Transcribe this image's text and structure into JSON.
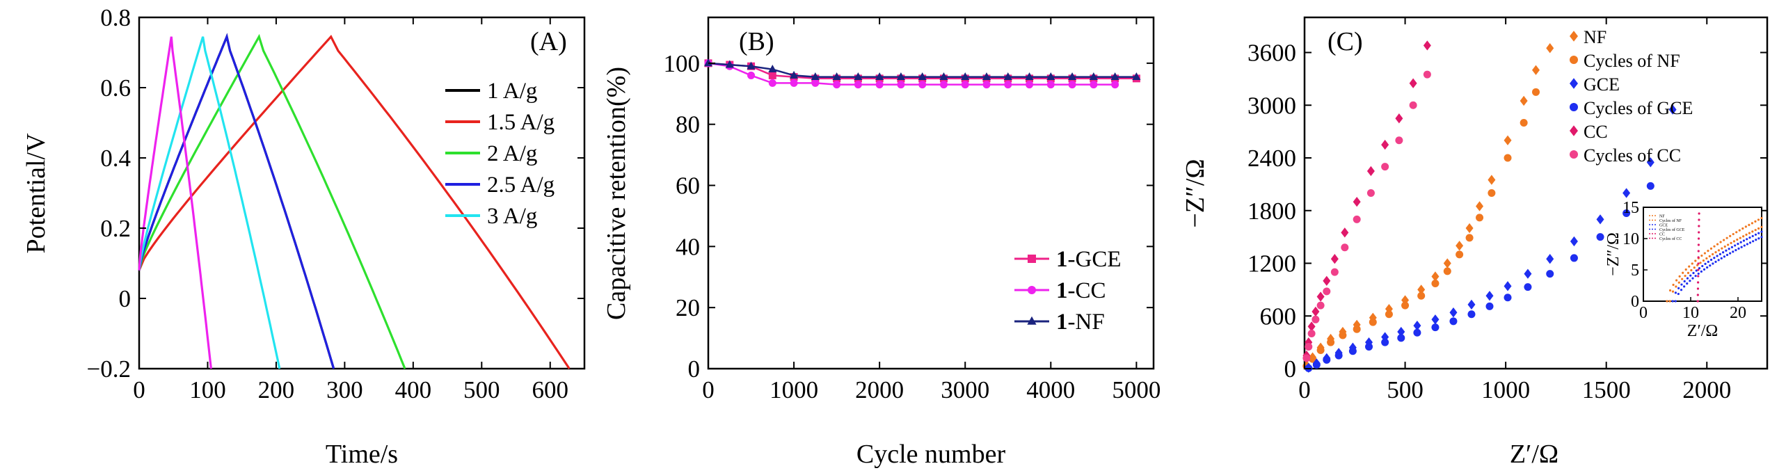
{
  "chart_data": [
    {
      "id": "A",
      "type": "line",
      "panel_label": "(A)",
      "xlabel": "Time/s",
      "ylabel": "Potential/V",
      "xlim": [
        0,
        650
      ],
      "ylim": [
        -0.2,
        0.8
      ],
      "xticks": [
        0,
        100,
        200,
        300,
        400,
        500,
        600
      ],
      "yticks": [
        -0.2,
        0,
        0.2,
        0.4,
        0.6,
        0.8
      ],
      "ytick_labels": [
        "−0.2",
        "0",
        "0.2",
        "0.4",
        "0.6",
        "0.8"
      ],
      "legend_position": "right",
      "series": [
        {
          "name": "1 A/g",
          "color": "#000000",
          "charge_end": 128,
          "discharge_end": 284
        },
        {
          "name": "1.5 A/g",
          "color": "#e8231e",
          "charge_end": 280,
          "discharge_end": 628
        },
        {
          "name": "2 A/g",
          "color": "#2ee02e",
          "charge_end": 175,
          "discharge_end": 388
        },
        {
          "name": "2.5 A/g",
          "color": "#2020e0",
          "charge_end": 128,
          "discharge_end": 284
        },
        {
          "name": "3 A/g",
          "color": "#22e4f0",
          "charge_end": 93,
          "discharge_end": 205
        },
        {
          "name": "",
          "color": "#ee22ee",
          "charge_end": 47,
          "discharge_end": 105
        }
      ],
      "v_start": 0.08,
      "v_max": 0.745,
      "v_min": -0.2
    },
    {
      "id": "B",
      "type": "line",
      "panel_label": "(B)",
      "xlabel": "Cycle number",
      "ylabel": "Capacitive retention(%)",
      "xlim": [
        0,
        5200
      ],
      "ylim": [
        0,
        115
      ],
      "xticks": [
        0,
        1000,
        2000,
        3000,
        4000,
        5000
      ],
      "yticks": [
        0,
        20,
        40,
        60,
        80,
        100
      ],
      "legend_position": "bottom-right",
      "series": [
        {
          "name_bold": "1",
          "name": "-GCE",
          "color": "#ee2288",
          "marker": "square",
          "x": [
            0,
            250,
            500,
            750,
            1000,
            1250,
            1500,
            1750,
            2000,
            2250,
            2500,
            2750,
            3000,
            3250,
            3500,
            3750,
            4000,
            4250,
            4500,
            4750,
            5000
          ],
          "values": [
            100,
            99.5,
            99,
            96,
            95.5,
            95,
            95,
            95,
            95,
            95,
            95,
            95,
            95,
            95,
            95,
            95,
            95,
            95,
            95,
            95,
            95
          ]
        },
        {
          "name_bold": "1",
          "name": "-CC",
          "color": "#ee22ee",
          "marker": "circle",
          "x": [
            0,
            250,
            500,
            750,
            1000,
            1250,
            1500,
            1750,
            2000,
            2250,
            2500,
            2750,
            3000,
            3250,
            3500,
            3750,
            4000,
            4250,
            4500,
            4750
          ],
          "values": [
            100,
            99,
            96,
            93.5,
            93.5,
            93.5,
            93,
            93,
            93,
            93,
            93,
            93,
            93,
            93,
            93,
            93,
            93,
            93,
            93,
            93
          ]
        },
        {
          "name_bold": "1",
          "name": "-NF",
          "color": "#1a237e",
          "marker": "triangle",
          "x": [
            0,
            250,
            500,
            750,
            1000,
            1250,
            1500,
            1750,
            2000,
            2250,
            2500,
            2750,
            3000,
            3250,
            3500,
            3750,
            4000,
            4250,
            4500,
            4750,
            5000
          ],
          "values": [
            100,
            99.5,
            99,
            98,
            96,
            95.5,
            95.5,
            95.5,
            95.5,
            95.5,
            95.5,
            95.5,
            95.5,
            95.5,
            95.5,
            95.5,
            95.5,
            95.5,
            95.5,
            95.5,
            95.5
          ]
        }
      ]
    },
    {
      "id": "C",
      "type": "scatter",
      "panel_label": "(C)",
      "xlabel": "Z′/Ω",
      "ylabel": "−Z″/Ω",
      "xlim": [
        0,
        2300
      ],
      "ylim": [
        0,
        4000
      ],
      "xticks": [
        0,
        500,
        1000,
        1500,
        2000
      ],
      "yticks": [
        0,
        600,
        1200,
        1800,
        2400,
        3000,
        3600
      ],
      "legend_position": "top-right",
      "series": [
        {
          "name": "NF",
          "color": "#f07820",
          "marker": "diamond",
          "x": [
            10,
            40,
            80,
            130,
            190,
            260,
            340,
            420,
            500,
            580,
            650,
            710,
            770,
            820,
            870,
            930,
            1010,
            1090,
            1150,
            1220
          ],
          "y": [
            40,
            130,
            240,
            340,
            420,
            500,
            580,
            680,
            780,
            900,
            1050,
            1200,
            1400,
            1600,
            1850,
            2150,
            2600,
            3050,
            3400,
            3650
          ]
        },
        {
          "name": "Cycles of NF",
          "color": "#f07820",
          "marker": "circle",
          "x": [
            10,
            40,
            80,
            130,
            190,
            260,
            340,
            420,
            500,
            580,
            650,
            710,
            770,
            820,
            870,
            930,
            1010,
            1090,
            1150
          ],
          "y": [
            30,
            110,
            210,
            300,
            380,
            450,
            530,
            620,
            720,
            830,
            970,
            1110,
            1300,
            1490,
            1720,
            2000,
            2400,
            2800,
            3150
          ]
        },
        {
          "name": "GCE",
          "color": "#1e2ef0",
          "marker": "diamond",
          "x": [
            20,
            60,
            110,
            170,
            240,
            320,
            400,
            480,
            560,
            650,
            740,
            830,
            920,
            1010,
            1110,
            1220,
            1340,
            1470,
            1600,
            1720,
            1830
          ],
          "y": [
            10,
            60,
            120,
            180,
            240,
            300,
            360,
            420,
            490,
            560,
            640,
            730,
            830,
            940,
            1080,
            1250,
            1450,
            1700,
            2000,
            2350,
            2950
          ]
        },
        {
          "name": "Cycles of GCE",
          "color": "#1e2ef0",
          "marker": "circle",
          "x": [
            20,
            60,
            110,
            170,
            240,
            320,
            400,
            480,
            560,
            650,
            740,
            830,
            920,
            1010,
            1110,
            1220,
            1340,
            1470,
            1600,
            1720
          ],
          "y": [
            5,
            45,
            100,
            150,
            200,
            250,
            300,
            350,
            410,
            470,
            540,
            620,
            710,
            810,
            930,
            1080,
            1260,
            1500,
            1770,
            2080
          ]
        },
        {
          "name": "CC",
          "color": "#e0186a",
          "marker": "diamond",
          "x": [
            10,
            20,
            35,
            55,
            80,
            110,
            150,
            200,
            260,
            330,
            400,
            470,
            540,
            610
          ],
          "y": [
            150,
            300,
            480,
            650,
            820,
            1000,
            1250,
            1550,
            1900,
            2250,
            2550,
            2850,
            3250,
            3680
          ]
        },
        {
          "name": "Cycles of CC",
          "color": "#f0408a",
          "marker": "circle",
          "x": [
            10,
            20,
            35,
            55,
            80,
            110,
            150,
            200,
            260,
            330,
            400,
            470,
            540,
            610
          ],
          "y": [
            120,
            250,
            400,
            560,
            720,
            880,
            1100,
            1380,
            1700,
            2000,
            2300,
            2600,
            3000,
            3350
          ]
        }
      ],
      "inset": {
        "xlabel": "Z′/Ω",
        "ylabel": "−Z″/Ω",
        "xlim": [
          0,
          25
        ],
        "ylim": [
          0,
          15
        ],
        "xticks": [
          0,
          10,
          20
        ],
        "yticks": [
          0,
          5,
          10,
          15
        ],
        "legend_entries": [
          "NF",
          "Cycles of NF",
          "GCE",
          "Cycles of GCE",
          "CC",
          "Cycles of CC"
        ]
      }
    }
  ]
}
